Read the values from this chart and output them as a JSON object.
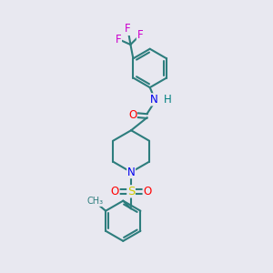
{
  "bg_color": "#e8e8f0",
  "bond_color": "#2d7d7d",
  "bond_width": 1.5,
  "atom_colors": {
    "O": "#ff0000",
    "N": "#0000ee",
    "S": "#cccc00",
    "F": "#cc00cc",
    "H": "#008080",
    "C": "#2d7d7d"
  },
  "font_size": 8.5,
  "fig_size": [
    3.0,
    3.0
  ],
  "dpi": 100
}
